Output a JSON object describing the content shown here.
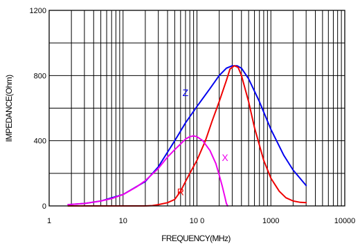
{
  "chart_data": {
    "type": "line",
    "xlabel": "FREQUENCY(MHz)",
    "ylabel": "IMPEDANCE(Ohm)",
    "xscale": "log",
    "xlim": [
      1,
      10000
    ],
    "ylim": [
      0,
      1200
    ],
    "x_ticks": [
      1,
      10,
      100,
      1000,
      10000
    ],
    "x_tick_labels": [
      "1",
      "10",
      "10 0",
      "1000",
      "10000"
    ],
    "y_ticks": [
      0,
      400,
      800,
      1200
    ],
    "y_tick_labels": [
      "0",
      "400",
      "800",
      "1200"
    ],
    "grid": true,
    "series": [
      {
        "name": "Z",
        "color": "#0000ee",
        "x": [
          1.8,
          3,
          5,
          10,
          20,
          30,
          50,
          70,
          100,
          150,
          200,
          250,
          300,
          350,
          400,
          500,
          700,
          1000,
          1500,
          2000,
          3000
        ],
        "y": [
          8,
          15,
          30,
          70,
          150,
          240,
          400,
          510,
          610,
          720,
          800,
          845,
          860,
          860,
          845,
          780,
          640,
          470,
          310,
          220,
          125
        ]
      },
      {
        "name": "R",
        "color": "#ee0000",
        "x": [
          1.8,
          10,
          20,
          25,
          30,
          40,
          50,
          60,
          70,
          80,
          100,
          130,
          160,
          200,
          250,
          280,
          320,
          360,
          400,
          500,
          600,
          800,
          1000,
          1300,
          1600,
          2000,
          2500,
          3000
        ],
        "y": [
          0,
          0,
          0,
          2,
          8,
          20,
          40,
          90,
          150,
          200,
          280,
          400,
          520,
          640,
          770,
          840,
          860,
          850,
          800,
          640,
          480,
          280,
          170,
          90,
          50,
          30,
          22,
          20
        ]
      },
      {
        "name": "X",
        "color": "#ee00ee",
        "x": [
          1.8,
          3,
          5,
          7,
          10,
          15,
          20,
          30,
          40,
          50,
          60,
          70,
          80,
          90,
          100,
          120,
          150,
          180,
          200,
          220,
          240,
          250,
          260
        ],
        "y": [
          8,
          15,
          30,
          45,
          70,
          115,
          155,
          230,
          300,
          345,
          380,
          410,
          425,
          430,
          425,
          400,
          340,
          260,
          190,
          120,
          50,
          15,
          0
        ]
      }
    ],
    "annotations": [
      {
        "text": "Z",
        "x": 70,
        "y": 675,
        "color": "#0000ee"
      },
      {
        "text": "R",
        "x": 60,
        "y": 65,
        "color": "#ee0000"
      },
      {
        "text": "X",
        "x": 240,
        "y": 275,
        "color": "#ee00ee"
      }
    ]
  }
}
